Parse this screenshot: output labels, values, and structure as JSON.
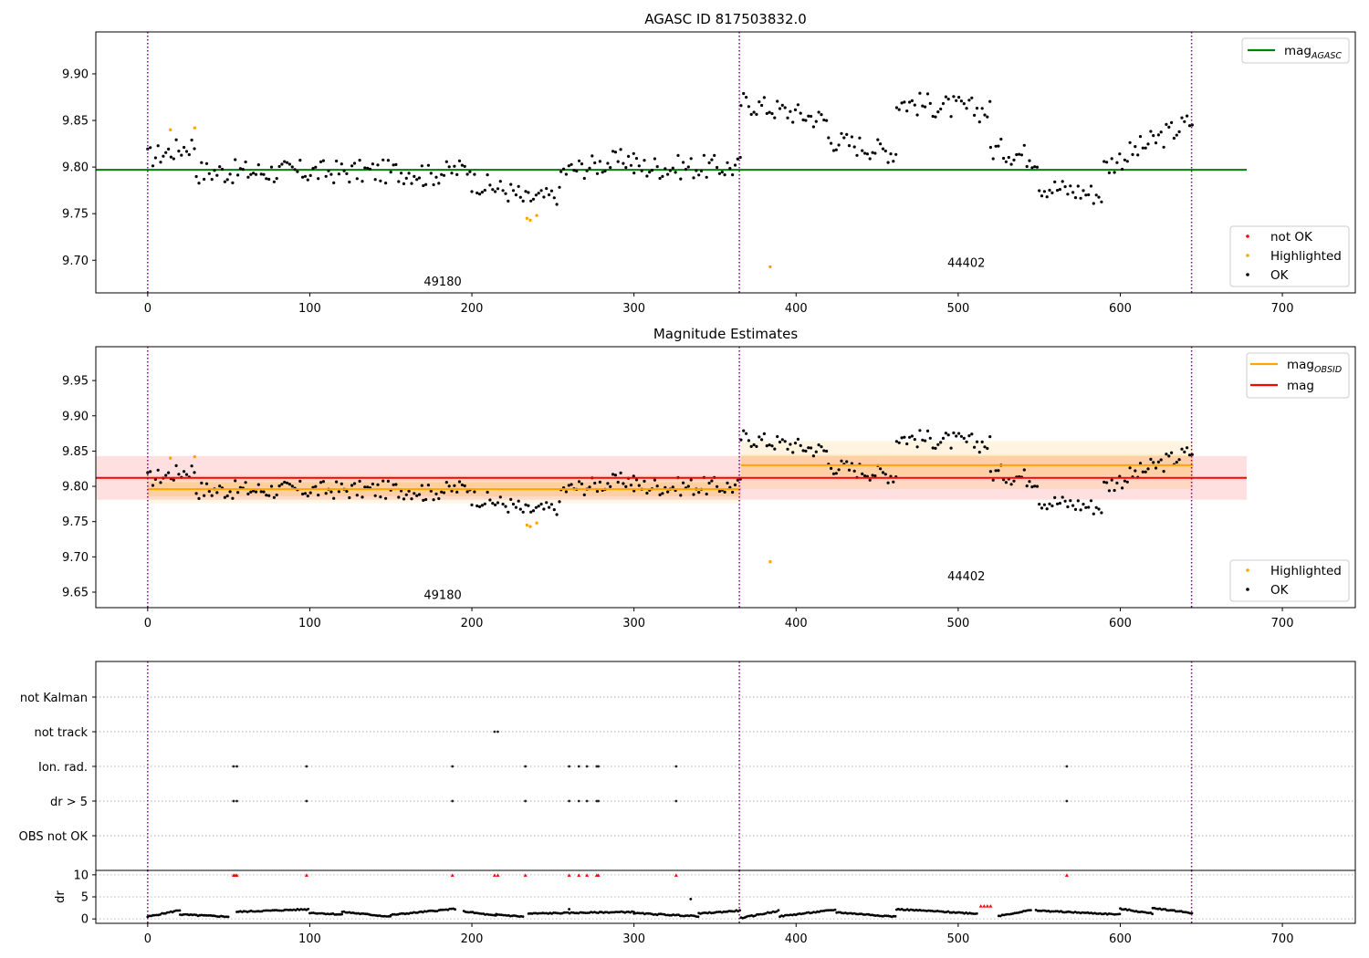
{
  "chart_data": [
    {
      "type": "scatter",
      "title": "AGASC ID 817503832.0",
      "xlim": [
        -32,
        745
      ],
      "ylim": [
        9.665,
        9.945
      ],
      "xticks": [
        0,
        100,
        200,
        300,
        400,
        500,
        600,
        700
      ],
      "yticks": [
        9.7,
        9.75,
        9.8,
        9.85,
        9.9
      ],
      "ytick_labels": [
        "9.70",
        "9.75",
        "9.80",
        "9.85",
        "9.90"
      ],
      "obs_boundaries": [
        0,
        365,
        644
      ],
      "obs_labels": [
        {
          "text": "49180",
          "x": 182,
          "y": 9.673
        },
        {
          "text": "44402",
          "x": 505,
          "y": 9.693
        }
      ],
      "hlines": [
        {
          "name": "mag",
          "sub": "AGASC",
          "y": 9.797,
          "x": [
            -32,
            678
          ],
          "color": "#008000"
        }
      ],
      "legend_lines": [
        {
          "name": "mag",
          "sub": "AGASC",
          "color": "#008000"
        }
      ],
      "legend_points": [
        {
          "name": "not OK",
          "color": "#ff0000"
        },
        {
          "name": "Highlighted",
          "color": "#ffa500"
        },
        {
          "name": "OK",
          "color": "#000000"
        }
      ],
      "highlighted": [
        [
          14,
          9.84
        ],
        [
          29,
          9.842
        ],
        [
          234,
          9.745
        ],
        [
          236,
          9.743
        ],
        [
          240,
          9.748
        ],
        [
          384,
          9.693
        ]
      ],
      "ok_segments": [
        {
          "x": [
            0,
            30
          ],
          "y": [
            9.81,
            9.825
          ],
          "noise": 0.012
        },
        {
          "x": [
            30,
            170
          ],
          "y": [
            9.795,
            9.795
          ],
          "noise": 0.013
        },
        {
          "x": [
            170,
            200
          ],
          "y": [
            9.79,
            9.8
          ],
          "noise": 0.012
        },
        {
          "x": [
            200,
            230
          ],
          "y": [
            9.785,
            9.77
          ],
          "noise": 0.012
        },
        {
          "x": [
            230,
            255
          ],
          "y": [
            9.765,
            9.77
          ],
          "noise": 0.01
        },
        {
          "x": [
            255,
            300
          ],
          "y": [
            9.795,
            9.81
          ],
          "noise": 0.012
        },
        {
          "x": [
            300,
            366
          ],
          "y": [
            9.8,
            9.8
          ],
          "noise": 0.013
        },
        {
          "x": [
            366,
            420
          ],
          "y": [
            9.87,
            9.85
          ],
          "noise": 0.012
        },
        {
          "x": [
            420,
            462
          ],
          "y": [
            9.83,
            9.815
          ],
          "noise": 0.012
        },
        {
          "x": [
            462,
            520
          ],
          "y": [
            9.87,
            9.86
          ],
          "noise": 0.013
        },
        {
          "x": [
            520,
            550
          ],
          "y": [
            9.82,
            9.81
          ],
          "noise": 0.013
        },
        {
          "x": [
            550,
            590
          ],
          "y": [
            9.78,
            9.77
          ],
          "noise": 0.012
        },
        {
          "x": [
            590,
            645
          ],
          "y": [
            9.8,
            9.85
          ],
          "noise": 0.013
        }
      ]
    },
    {
      "type": "scatter",
      "title": "Magnitude Estimates",
      "xlim": [
        -32,
        745
      ],
      "ylim": [
        9.628,
        9.998
      ],
      "xticks": [
        0,
        100,
        200,
        300,
        400,
        500,
        600,
        700
      ],
      "yticks": [
        9.65,
        9.7,
        9.75,
        9.8,
        9.85,
        9.9,
        9.95
      ],
      "ytick_labels": [
        "9.65",
        "9.70",
        "9.75",
        "9.80",
        "9.85",
        "9.90",
        "9.95"
      ],
      "obs_boundaries": [
        0,
        365,
        644
      ],
      "obs_labels": [
        {
          "text": "49180",
          "x": 182,
          "y": 9.64
        },
        {
          "text": "44402",
          "x": 505,
          "y": 9.667
        }
      ],
      "bands": [
        {
          "x": [
            -32,
            678
          ],
          "y": [
            9.781,
            9.843
          ],
          "color": "#ff0000",
          "opacity": 0.12
        },
        {
          "x": [
            0,
            366
          ],
          "y": [
            9.786,
            9.806
          ],
          "color": "#ffa500",
          "opacity": 0.2
        },
        {
          "x": [
            0,
            366
          ],
          "y": [
            9.776,
            9.816
          ],
          "color": "#ffa500",
          "opacity": 0.1
        },
        {
          "x": [
            366,
            645
          ],
          "y": [
            9.796,
            9.864
          ],
          "color": "#ffa500",
          "opacity": 0.12
        },
        {
          "x": [
            366,
            645
          ],
          "y": [
            9.815,
            9.845
          ],
          "color": "#ffa500",
          "opacity": 0.15
        }
      ],
      "hlines": [
        {
          "name": "mag",
          "sub": "OBSID",
          "y": 9.796,
          "x": [
            0,
            366
          ],
          "color": "#ffa500"
        },
        {
          "name": "mag",
          "sub": "OBSID",
          "y": 9.83,
          "x": [
            366,
            645
          ],
          "color": "#ffa500"
        },
        {
          "name": "mag",
          "sub": "",
          "y": 9.812,
          "x": [
            -32,
            678
          ],
          "color": "#ff0000"
        }
      ],
      "legend_lines": [
        {
          "name": "mag",
          "sub": "OBSID",
          "color": "#ffa500"
        },
        {
          "name": "mag",
          "sub": "",
          "color": "#ff0000"
        }
      ],
      "legend_points": [
        {
          "name": "Highlighted",
          "color": "#ffa500"
        },
        {
          "name": "OK",
          "color": "#000000"
        }
      ],
      "highlighted": [
        [
          14,
          9.84
        ],
        [
          29,
          9.842
        ],
        [
          234,
          9.745
        ],
        [
          236,
          9.743
        ],
        [
          240,
          9.748
        ],
        [
          384,
          9.693
        ]
      ],
      "ok_segments": [
        {
          "x": [
            0,
            30
          ],
          "y": [
            9.81,
            9.825
          ],
          "noise": 0.012
        },
        {
          "x": [
            30,
            170
          ],
          "y": [
            9.795,
            9.795
          ],
          "noise": 0.013
        },
        {
          "x": [
            170,
            200
          ],
          "y": [
            9.79,
            9.8
          ],
          "noise": 0.012
        },
        {
          "x": [
            200,
            230
          ],
          "y": [
            9.785,
            9.77
          ],
          "noise": 0.012
        },
        {
          "x": [
            230,
            255
          ],
          "y": [
            9.765,
            9.77
          ],
          "noise": 0.01
        },
        {
          "x": [
            255,
            300
          ],
          "y": [
            9.795,
            9.81
          ],
          "noise": 0.012
        },
        {
          "x": [
            300,
            366
          ],
          "y": [
            9.8,
            9.8
          ],
          "noise": 0.013
        },
        {
          "x": [
            366,
            420
          ],
          "y": [
            9.87,
            9.85
          ],
          "noise": 0.012
        },
        {
          "x": [
            420,
            462
          ],
          "y": [
            9.83,
            9.815
          ],
          "noise": 0.012
        },
        {
          "x": [
            462,
            520
          ],
          "y": [
            9.87,
            9.86
          ],
          "noise": 0.013
        },
        {
          "x": [
            520,
            550
          ],
          "y": [
            9.82,
            9.81
          ],
          "noise": 0.013
        },
        {
          "x": [
            550,
            590
          ],
          "y": [
            9.78,
            9.77
          ],
          "noise": 0.012
        },
        {
          "x": [
            590,
            645
          ],
          "y": [
            9.8,
            9.85
          ],
          "noise": 0.013
        }
      ]
    },
    {
      "type": "scatter",
      "title": "",
      "xlim": [
        -32,
        745
      ],
      "categories": [
        "not Kalman",
        "not track",
        "Ion. rad.",
        "dr > 5",
        "OBS not OK"
      ],
      "grid": "horizontal dotted",
      "obs_boundaries": [
        0,
        365,
        644
      ],
      "flags": {
        "not Kalman": [],
        "not track": [
          214,
          216
        ],
        "Ion. rad.": [
          53,
          55,
          98,
          188,
          233,
          260,
          266,
          271,
          277,
          278,
          326,
          567
        ],
        "dr > 5": [
          53,
          55,
          98,
          188,
          233,
          260,
          266,
          271,
          277,
          278,
          326,
          567
        ],
        "OBS not OK": []
      }
    },
    {
      "type": "scatter",
      "title": "",
      "xlim": [
        -32,
        745
      ],
      "ylim": [
        -1,
        11
      ],
      "ylabel": "dr",
      "xticks": [
        0,
        100,
        200,
        300,
        400,
        500,
        600,
        700
      ],
      "yticks": [
        0,
        5,
        10
      ],
      "ytick_labels": [
        "0",
        "5",
        "10"
      ],
      "obs_boundaries": [
        0,
        365,
        644
      ],
      "high_points": [
        [
          53,
          10
        ],
        [
          54,
          10
        ],
        [
          55,
          10
        ],
        [
          98,
          10
        ],
        [
          188,
          10
        ],
        [
          214,
          10
        ],
        [
          216,
          10
        ],
        [
          233,
          10
        ],
        [
          260,
          10
        ],
        [
          266,
          10
        ],
        [
          271,
          10
        ],
        [
          277,
          10
        ],
        [
          278,
          10
        ],
        [
          326,
          10
        ],
        [
          567,
          10
        ],
        [
          514,
          3
        ],
        [
          516,
          3
        ],
        [
          518,
          3
        ],
        [
          520,
          3
        ]
      ],
      "extra_points": [
        [
          335,
          4.5
        ],
        [
          260,
          2.2
        ]
      ],
      "dr_segments": [
        {
          "x": [
            0,
            20
          ],
          "y": [
            0.5,
            2.0
          ]
        },
        {
          "x": [
            20,
            50
          ],
          "y": [
            1.0,
            0.5
          ]
        },
        {
          "x": [
            55,
            100
          ],
          "y": [
            1.6,
            2.2
          ]
        },
        {
          "x": [
            100,
            120
          ],
          "y": [
            1.4,
            1.0
          ]
        },
        {
          "x": [
            120,
            150
          ],
          "y": [
            1.6,
            0.5
          ]
        },
        {
          "x": [
            150,
            190
          ],
          "y": [
            0.9,
            2.3
          ]
        },
        {
          "x": [
            195,
            215
          ],
          "y": [
            1.7,
            0.7
          ]
        },
        {
          "x": [
            215,
            232
          ],
          "y": [
            1.0,
            0.5
          ]
        },
        {
          "x": [
            235,
            300
          ],
          "y": [
            1.2,
            1.6
          ]
        },
        {
          "x": [
            300,
            340
          ],
          "y": [
            1.3,
            0.6
          ]
        },
        {
          "x": [
            340,
            366
          ],
          "y": [
            1.2,
            1.9
          ]
        },
        {
          "x": [
            366,
            390
          ],
          "y": [
            0.2,
            1.9
          ]
        },
        {
          "x": [
            390,
            425
          ],
          "y": [
            0.6,
            2.1
          ]
        },
        {
          "x": [
            425,
            462
          ],
          "y": [
            1.5,
            0.5
          ]
        },
        {
          "x": [
            462,
            512
          ],
          "y": [
            2.2,
            1.2
          ]
        },
        {
          "x": [
            525,
            545
          ],
          "y": [
            0.7,
            2.0
          ]
        },
        {
          "x": [
            548,
            600
          ],
          "y": [
            1.9,
            1.0
          ]
        },
        {
          "x": [
            600,
            620
          ],
          "y": [
            2.3,
            1.2
          ]
        },
        {
          "x": [
            620,
            645
          ],
          "y": [
            2.5,
            1.3
          ]
        }
      ]
    }
  ]
}
